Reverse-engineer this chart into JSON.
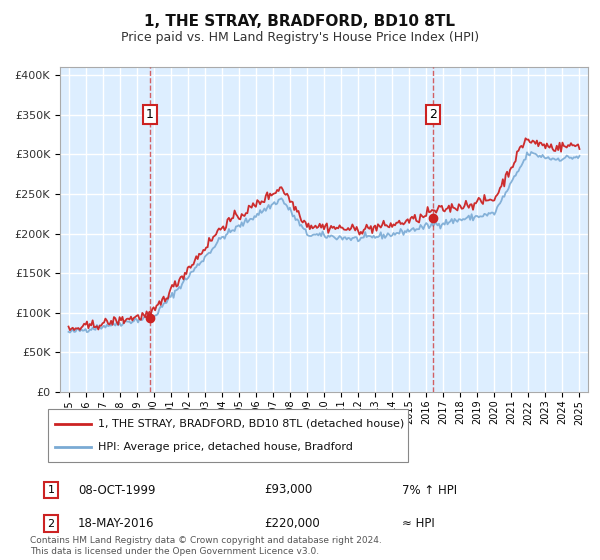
{
  "title": "1, THE STRAY, BRADFORD, BD10 8TL",
  "subtitle": "Price paid vs. HM Land Registry's House Price Index (HPI)",
  "legend_line1": "1, THE STRAY, BRADFORD, BD10 8TL (detached house)",
  "legend_line2": "HPI: Average price, detached house, Bradford",
  "annotation1_label": "1",
  "annotation1_date": "08-OCT-1999",
  "annotation1_price": "£93,000",
  "annotation1_hpi": "7% ↑ HPI",
  "annotation1_year": 1999.77,
  "annotation1_value": 93000,
  "annotation2_label": "2",
  "annotation2_date": "18-MAY-2016",
  "annotation2_price": "£220,000",
  "annotation2_hpi": "≈ HPI",
  "annotation2_year": 2016.38,
  "annotation2_value": 220000,
  "ylim_min": 0,
  "ylim_max": 410000,
  "plot_bg_color": "#ddeeff",
  "hpi_color": "#7aaad4",
  "price_color": "#cc2222",
  "grid_color": "#ffffff",
  "footer": "Contains HM Land Registry data © Crown copyright and database right 2024.\nThis data is licensed under the Open Government Licence v3.0."
}
